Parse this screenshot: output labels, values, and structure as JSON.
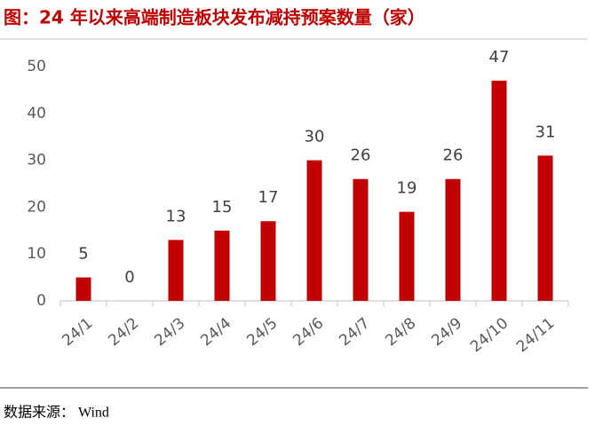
{
  "chart_data": {
    "type": "bar",
    "title": "图：24 年以来高端制造板块发布减持预案数量（家）",
    "source": "数据来源： Wind",
    "categories": [
      "24/1",
      "24/2",
      "24/3",
      "24/4",
      "24/5",
      "24/6",
      "24/7",
      "24/8",
      "24/9",
      "24/10",
      "24/11"
    ],
    "values": [
      5,
      0,
      13,
      15,
      17,
      30,
      26,
      19,
      26,
      47,
      31
    ],
    "color": "#c00000",
    "ylim": [
      0,
      50
    ],
    "yticks": [
      0,
      10,
      20,
      30,
      40,
      50
    ],
    "grid": false
  }
}
